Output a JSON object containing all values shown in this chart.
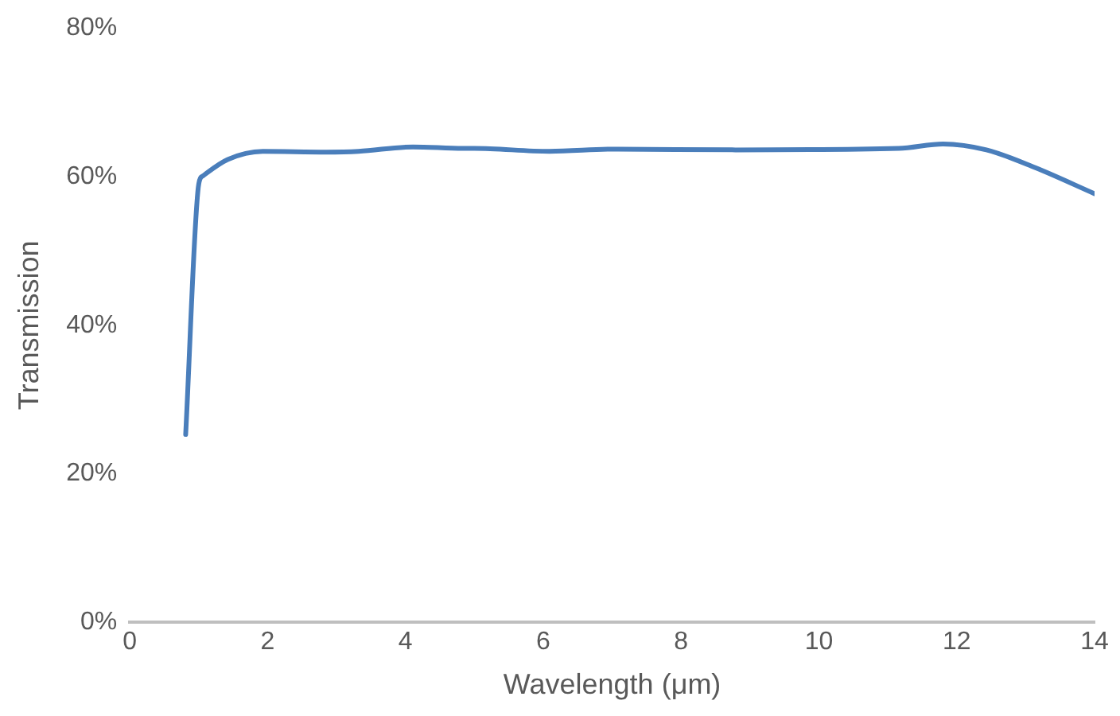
{
  "chart_data": {
    "type": "line",
    "xlabel": "Wavelength (μm)",
    "ylabel": "Transmission",
    "xlim": [
      0,
      14
    ],
    "xticks": [
      0,
      2,
      4,
      6,
      8,
      10,
      12,
      14
    ],
    "ylim": [
      0,
      80
    ],
    "yticks": [
      {
        "value": 0,
        "label": "0%"
      },
      {
        "value": 20,
        "label": "20%"
      },
      {
        "value": 40,
        "label": "40%"
      },
      {
        "value": 60,
        "label": "60%"
      },
      {
        "value": 80,
        "label": "80%"
      }
    ],
    "grid": false,
    "legend": false,
    "marker": "none",
    "line_style": "solid",
    "series": [
      {
        "color": "#4a7ebb",
        "x": [
          0.81,
          1.0,
          1.06,
          1.42,
          1.93,
          2.85,
          3.32,
          4.11,
          4.83,
          5.0,
          6.09,
          7.04,
          8.79,
          11.16,
          11.8,
          12.43,
          13.14,
          14.0
        ],
        "values": [
          25.3,
          59.0,
          60.1,
          62.3,
          63.4,
          63.3,
          63.4,
          64.0,
          63.8,
          63.8,
          63.4,
          63.7,
          63.6,
          63.8,
          64.4,
          63.6,
          61.2,
          57.7
        ]
      }
    ]
  }
}
